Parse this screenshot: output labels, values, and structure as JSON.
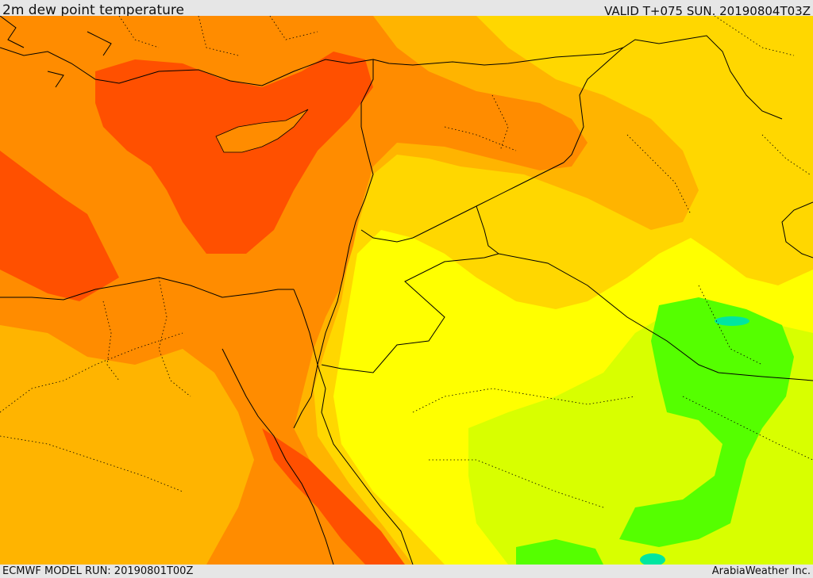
{
  "header": {
    "title": "2m dew point temperature",
    "valid": "VALID T+075 SUN. 20190804T03Z"
  },
  "footer": {
    "model_run": "ECMWF MODEL RUN: 20190801T00Z",
    "credit": "ArabiaWeather Inc."
  },
  "colors": {
    "yellow": "#ffff00",
    "gold": "#ffd700",
    "light_orange": "#ffb400",
    "orange": "#ff8c00",
    "dark_orange": "#ff5000",
    "yellow_green": "#d8ff00",
    "green": "#55ff00",
    "teal": "#00e6a0",
    "border_line": "#000000"
  },
  "icons": [
    "coastline",
    "country-borders",
    "province-borders"
  ]
}
